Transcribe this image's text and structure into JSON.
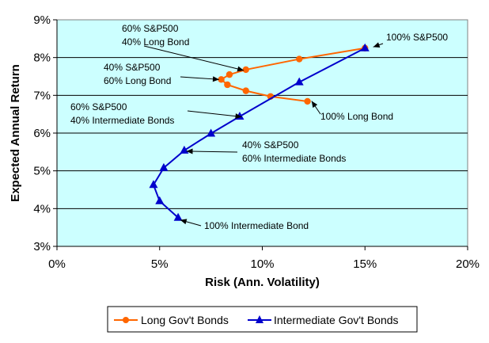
{
  "chart_data": {
    "type": "line",
    "title": "",
    "xlabel": "Risk (Ann. Volatility)",
    "ylabel": "Expected Annual Return",
    "xlim": [
      0,
      20
    ],
    "ylim": [
      3,
      9
    ],
    "x_ticks": [
      "0%",
      "5%",
      "10%",
      "15%",
      "20%"
    ],
    "y_ticks": [
      "3%",
      "4%",
      "5%",
      "6%",
      "7%",
      "8%",
      "9%"
    ],
    "grid": "horizontal",
    "plot_background": "#ccffff",
    "legend_position": "bottom",
    "series": [
      {
        "name": "Long Gov't Bonds",
        "color": "#ff6600",
        "marker": "circle",
        "points": [
          {
            "x": 12.2,
            "y": 6.84
          },
          {
            "x": 10.4,
            "y": 6.97
          },
          {
            "x": 9.2,
            "y": 7.12
          },
          {
            "x": 8.3,
            "y": 7.28
          },
          {
            "x": 8.0,
            "y": 7.42
          },
          {
            "x": 8.4,
            "y": 7.55
          },
          {
            "x": 9.2,
            "y": 7.68
          },
          {
            "x": 11.8,
            "y": 7.96
          },
          {
            "x": 15.0,
            "y": 8.25
          }
        ]
      },
      {
        "name": "Intermediate Gov't Bonds",
        "color": "#0000cc",
        "marker": "triangle",
        "points": [
          {
            "x": 5.9,
            "y": 3.76
          },
          {
            "x": 5.0,
            "y": 4.2
          },
          {
            "x": 4.7,
            "y": 4.63
          },
          {
            "x": 5.2,
            "y": 5.08
          },
          {
            "x": 6.2,
            "y": 5.54
          },
          {
            "x": 7.5,
            "y": 5.99
          },
          {
            "x": 8.9,
            "y": 6.44
          },
          {
            "x": 11.8,
            "y": 7.35
          },
          {
            "x": 15.0,
            "y": 8.25
          }
        ]
      }
    ],
    "annotations": [
      {
        "lines": [
          "60% S&P500",
          "40% Long Bond"
        ],
        "point": {
          "x": 9.1,
          "y": 7.66
        }
      },
      {
        "lines": [
          "40% S&P500",
          "60% Long Bond"
        ],
        "point": {
          "x": 7.9,
          "y": 7.42
        }
      },
      {
        "lines": [
          "100% S&P500"
        ],
        "point": {
          "x": 15.4,
          "y": 8.28
        }
      },
      {
        "lines": [
          "60% S&P500",
          "40% Intermediate Bonds"
        ],
        "point": {
          "x": 9.0,
          "y": 6.43
        }
      },
      {
        "lines": [
          "100% Long Bond"
        ],
        "point": {
          "x": 12.4,
          "y": 6.85
        }
      },
      {
        "lines": [
          "40% S&P500",
          "60% Intermediate Bonds"
        ],
        "point": {
          "x": 6.3,
          "y": 5.52
        }
      },
      {
        "lines": [
          "100% Intermediate Bond"
        ],
        "point": {
          "x": 6.0,
          "y": 3.7
        }
      }
    ]
  }
}
